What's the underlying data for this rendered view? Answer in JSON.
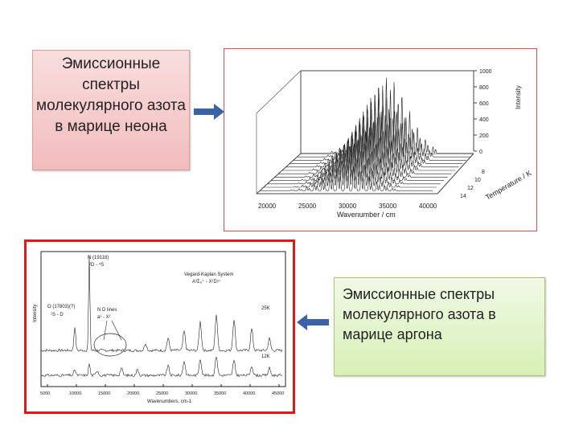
{
  "captions": {
    "neon": "Эмиссионные спектры молекулярного азота в марице неона",
    "argon": "Эмиссионные спектры молекулярного азота в марице аргона"
  },
  "figure_neon": {
    "x_ticks": [
      "20000",
      "25000",
      "30000",
      "35000",
      "40000"
    ],
    "x_label": "Wavenumber / cm",
    "z_ticks": [
      "0",
      "200",
      "400",
      "600",
      "800",
      "1000"
    ],
    "z_label": "Intensity",
    "depth_ticks": [
      "8",
      "10",
      "12",
      "14"
    ],
    "depth_label": "Temperature / K"
  },
  "figure_argon": {
    "x_ticks": [
      "5000",
      "10000",
      "15000",
      "20000",
      "25000",
      "30000",
      "35000",
      "40000",
      "45000"
    ],
    "x_label": "Wavenumbers, cm-1",
    "y_label": "Intensity",
    "annotations": {
      "n_line": "N (19118)",
      "n_term": "²D - ⁴S",
      "o_line": "O (17803)(?)",
      "o_term": "¹S - D",
      "nd_lines": "N D lines",
      "nd_term": "a¹ - X¹",
      "vk_system": "Vegard-Kaplan System",
      "vk_term": "A³Σᵤ⁺ - X¹Σᵍ⁺",
      "t_upper": "25K",
      "t_lower": "12K"
    }
  },
  "colors": {
    "neon_box": "#f2bcbc",
    "argon_box": "#d8f0b6",
    "arrow": "#3b62a6",
    "frame_red": "#e01818"
  }
}
